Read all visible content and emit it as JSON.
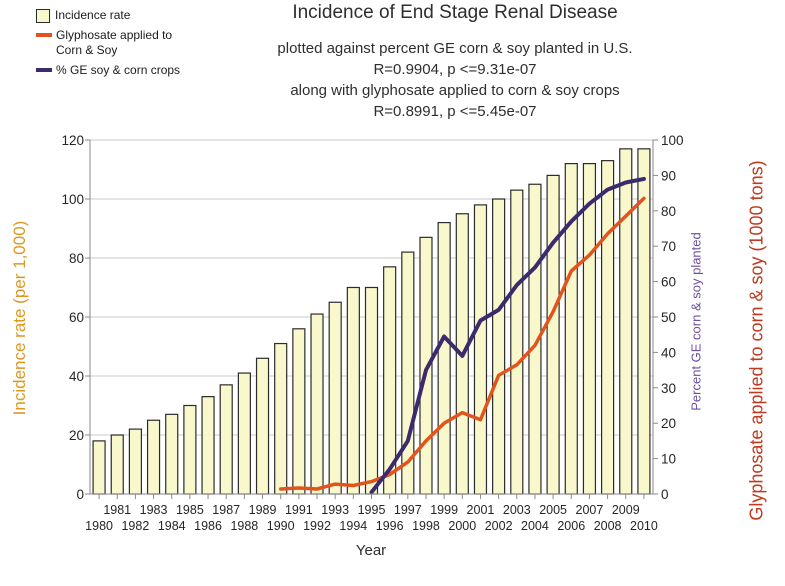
{
  "title": "Incidence of End Stage Renal Disease",
  "subtitle_lines": [
    "plotted against percent GE corn & soy planted in U.S.",
    "R=0.9904, p <=9.31e-07",
    "along with glyphosate applied to corn & soy crops",
    "R=0.8991, p <=5.45e-07"
  ],
  "legend": {
    "items": [
      {
        "label": "Incidence rate",
        "type": "box",
        "color": "#f8f8cc"
      },
      {
        "line1": "Glyphosate applied to",
        "line2": "Corn & Soy",
        "type": "line",
        "color": "#e2541c"
      },
      {
        "label": "% GE soy & corn crops",
        "type": "line",
        "color": "#3d2a6d"
      }
    ]
  },
  "axes": {
    "left_label": "Incidence rate (per 1,000)",
    "left_label_color": "#dd971f",
    "right_inner_label": "Percent GE corn & soy planted",
    "right_inner_label_color": "#6b4fa1",
    "right_outer_label": "Glyphosate applied to corn & soy (1000 tons)",
    "right_outer_label_color": "#bf3a1e",
    "x_label": "Year"
  },
  "chart_data": {
    "type": "bar",
    "title": "Incidence of End Stage Renal Disease",
    "xlabel": "Year",
    "categories": [
      1980,
      1981,
      1982,
      1983,
      1984,
      1985,
      1986,
      1987,
      1988,
      1989,
      1990,
      1991,
      1992,
      1993,
      1994,
      1995,
      1996,
      1997,
      1998,
      1999,
      2000,
      2001,
      2002,
      2003,
      2004,
      2005,
      2006,
      2007,
      2008,
      2009,
      2010
    ],
    "left_axis": {
      "min": 0,
      "max": 120,
      "ticks": [
        0,
        20,
        40,
        60,
        80,
        100,
        120
      ]
    },
    "right_axis": {
      "min": 0,
      "max": 100,
      "ticks": [
        0,
        10,
        20,
        30,
        40,
        50,
        60,
        70,
        80,
        90,
        100
      ]
    },
    "grid": "horizontal",
    "legend_position": "top-left",
    "series": [
      {
        "name": "Incidence rate",
        "type": "bar",
        "axis": "left",
        "color": "#f8f8cc",
        "border_color": "#2b2b2b",
        "x_start": 1980,
        "values": [
          18,
          20,
          22,
          25,
          27,
          30,
          33,
          37,
          41,
          46,
          51,
          56,
          61,
          65,
          70,
          70,
          77,
          82,
          87,
          92,
          95,
          98,
          100,
          103,
          105,
          108,
          112,
          112,
          113,
          117,
          117
        ]
      },
      {
        "name": "Glyphosate applied to Corn & Soy",
        "type": "line",
        "axis": "right",
        "color": "#e2541c",
        "x_start": 1990,
        "values": [
          1.4,
          1.7,
          1.4,
          2.8,
          2.4,
          3.5,
          5.5,
          9,
          15,
          20,
          23,
          21,
          33.5,
          36.5,
          42,
          51.5,
          63,
          67.5,
          73.5,
          78.5,
          83.5
        ]
      },
      {
        "name": "% GE soy & corn crops",
        "type": "line",
        "axis": "right",
        "color": "#3d2a6d",
        "x_start": 1995,
        "values": [
          0.5,
          7,
          15,
          35,
          44.5,
          39,
          49,
          52,
          59,
          64,
          71,
          77,
          82,
          86,
          88,
          89
        ]
      }
    ]
  }
}
